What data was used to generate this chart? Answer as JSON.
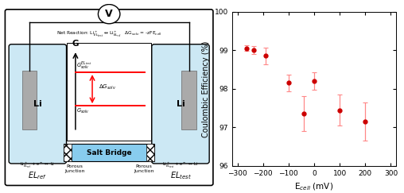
{
  "scatter": {
    "x": [
      -265,
      -235,
      -190,
      -100,
      -40,
      0,
      100,
      200
    ],
    "y": [
      99.05,
      99.0,
      98.85,
      98.15,
      97.35,
      98.2,
      97.45,
      97.15
    ],
    "yerr": [
      0.07,
      0.1,
      0.22,
      0.22,
      0.45,
      0.22,
      0.4,
      0.5
    ],
    "color": "#cc0000",
    "ecolor": "#ff8888",
    "xlabel": "E$_{cell}$ (mV)",
    "ylabel": "Coulombic Efficiency (%)",
    "xlim": [
      -320,
      320
    ],
    "ylim": [
      96,
      100
    ],
    "yticks": [
      96,
      97,
      98,
      99,
      100
    ],
    "xticks": [
      -300,
      -200,
      -100,
      0,
      100,
      200,
      300
    ]
  },
  "diagram": {
    "bg_color": "#cce8f4",
    "electrode_color": "#b0b0b0",
    "salt_bridge_color": "#88ccee",
    "net_reaction": "Net Reaction: Li$^+_{EL_{test}}$ ↔ Li$^+_{EL_{ref}}$   ΔG$_{solv}$ = -zFE$_{cell}$"
  }
}
